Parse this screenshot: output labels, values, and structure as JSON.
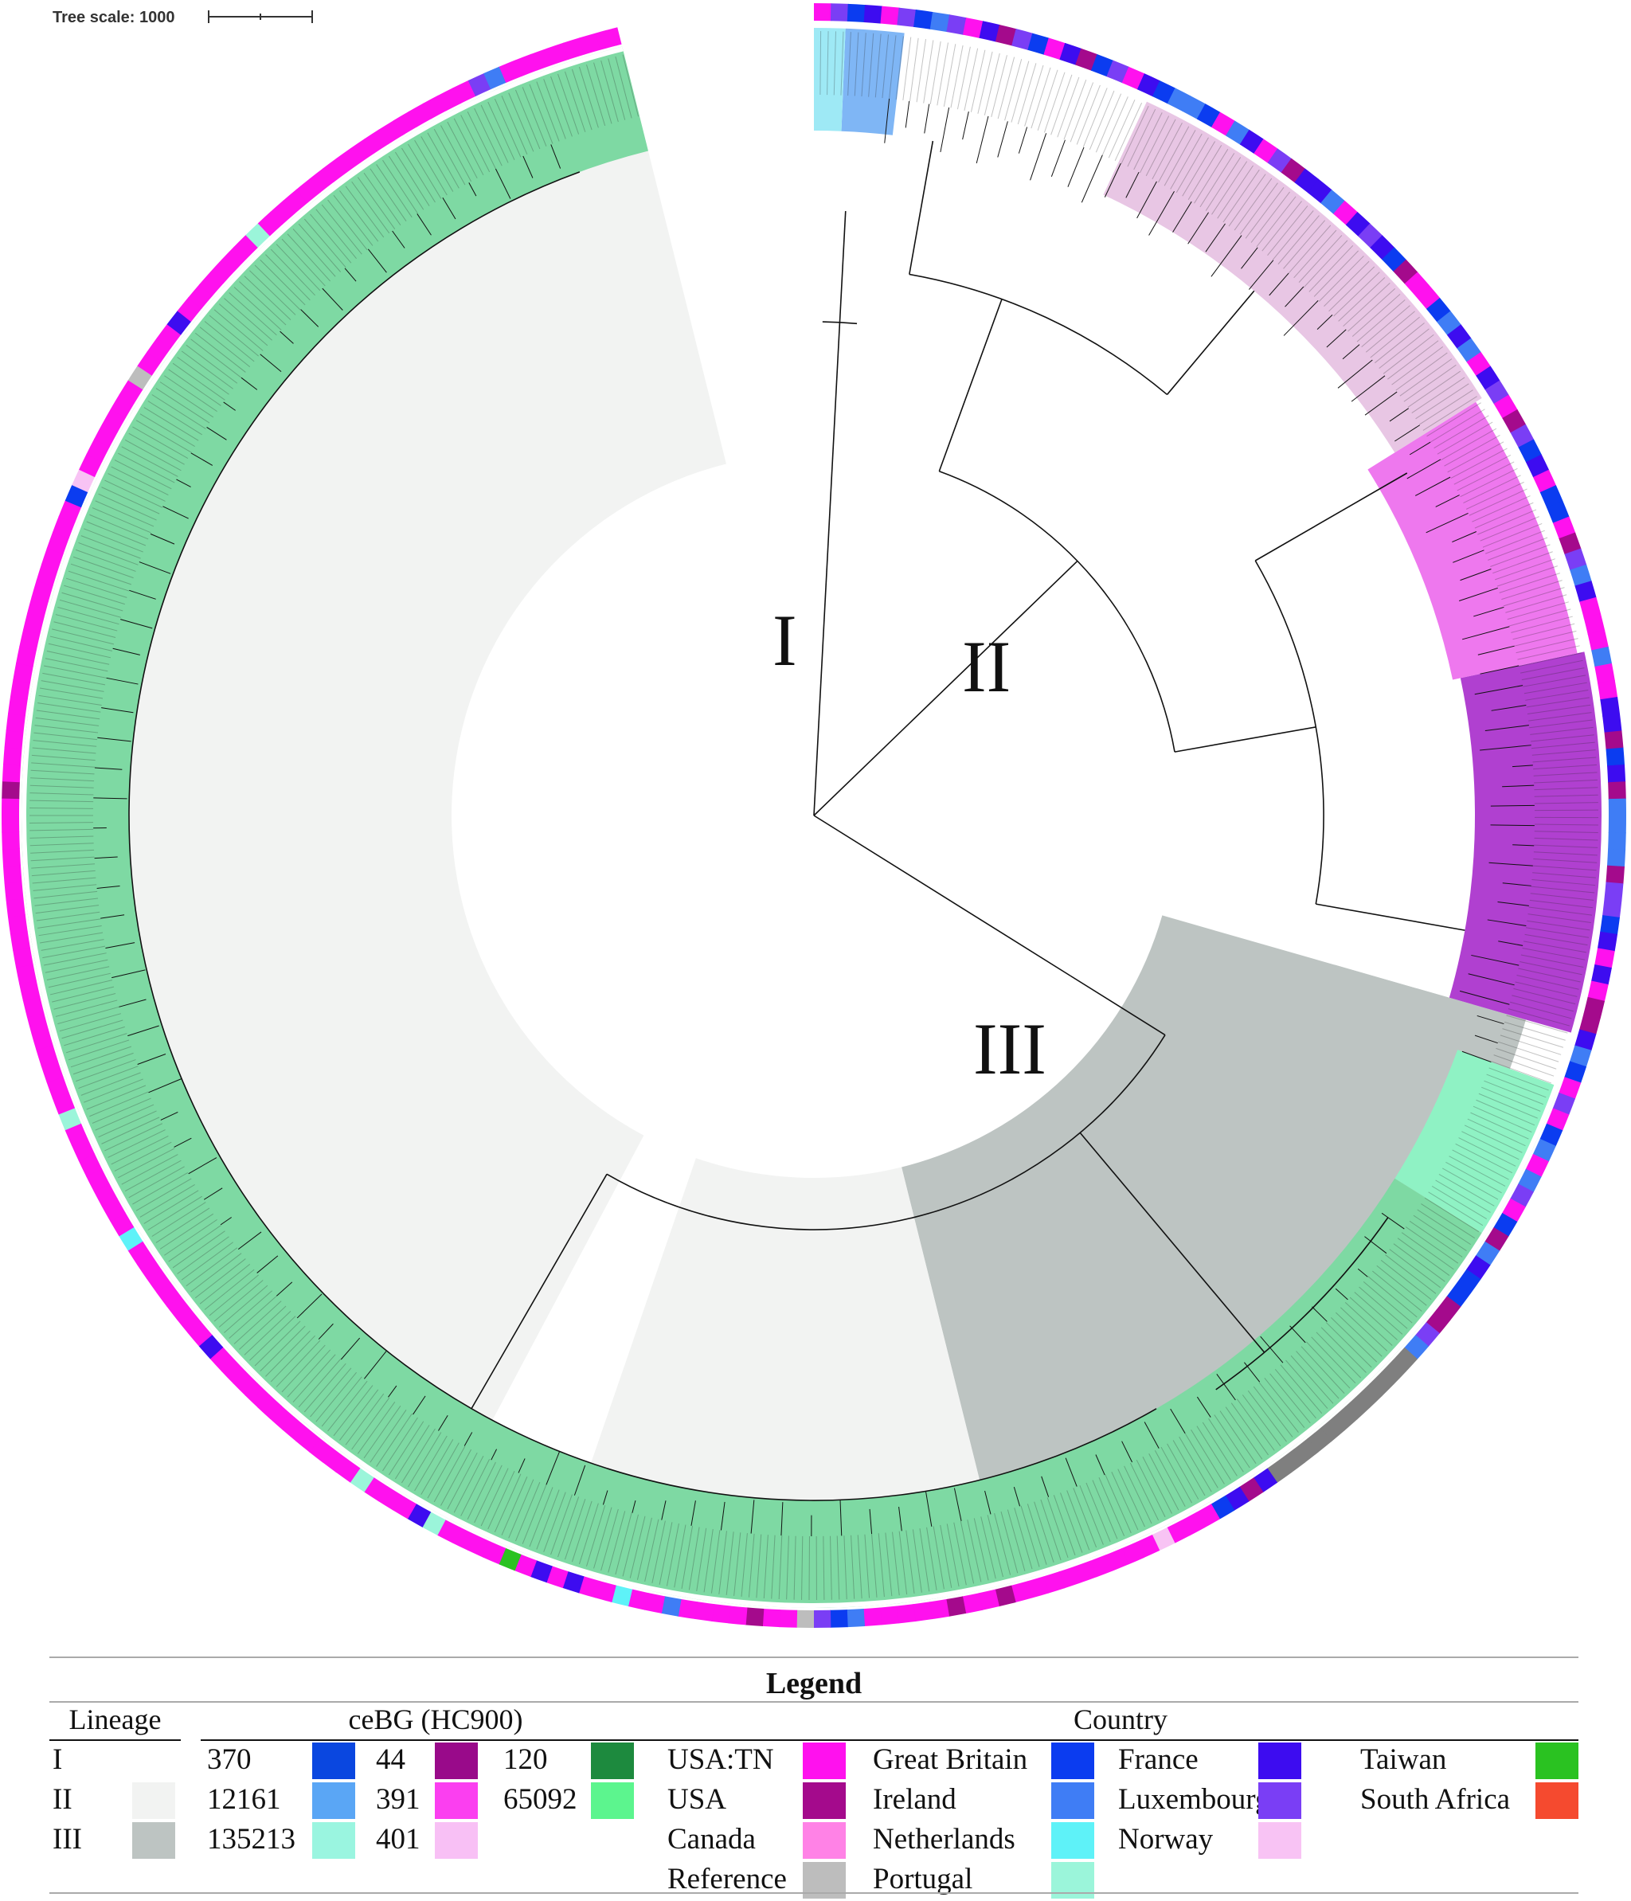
{
  "scale": {
    "label": "Tree scale: 1000"
  },
  "clades": {
    "lineage_1": "I",
    "lineage_2": "II",
    "lineage_3": "III"
  },
  "legend": {
    "title": "Legend",
    "lineage": {
      "title": "Lineage",
      "items": [
        {
          "label": "I",
          "color": "#ffffff"
        },
        {
          "label": "II",
          "color": "#f2f3f2"
        },
        {
          "label": "III",
          "color": "#bdc4c2"
        }
      ]
    },
    "cebg": {
      "title": "ceBG (HC900)",
      "items": [
        {
          "label": "370",
          "color": "#0a47e0"
        },
        {
          "label": "12161",
          "color": "#5aa6f5"
        },
        {
          "label": "135213",
          "color": "#9af5e0"
        },
        {
          "label": "44",
          "color": "#990a8a"
        },
        {
          "label": "391",
          "color": "#fb3ff0"
        },
        {
          "label": "401",
          "color": "#f8c0f5"
        },
        {
          "label": "120",
          "color": "#1d8a3e"
        },
        {
          "label": "65092",
          "color": "#5cf58e"
        }
      ]
    },
    "country": {
      "title": "Country",
      "items": [
        {
          "label": "USA:TN",
          "color": "#ff11ee"
        },
        {
          "label": "USA",
          "color": "#a40a8c"
        },
        {
          "label": "Canada",
          "color": "#ff82e6"
        },
        {
          "label": "Reference",
          "color": "#bdbdbd"
        },
        {
          "label": "Great Britain",
          "color": "#0b3cf0"
        },
        {
          "label": "Ireland",
          "color": "#3f7df5"
        },
        {
          "label": "Netherlands",
          "color": "#5ef2f8"
        },
        {
          "label": "Portugal",
          "color": "#9bf5da"
        },
        {
          "label": "France",
          "color": "#3d0cf0"
        },
        {
          "label": "Luxembourg",
          "color": "#7a3ef5"
        },
        {
          "label": "Norway",
          "color": "#f8c3f4"
        },
        {
          "label": "Taiwan",
          "color": "#2ac221"
        },
        {
          "label": "South Africa",
          "color": "#f54a2f"
        }
      ]
    }
  }
}
